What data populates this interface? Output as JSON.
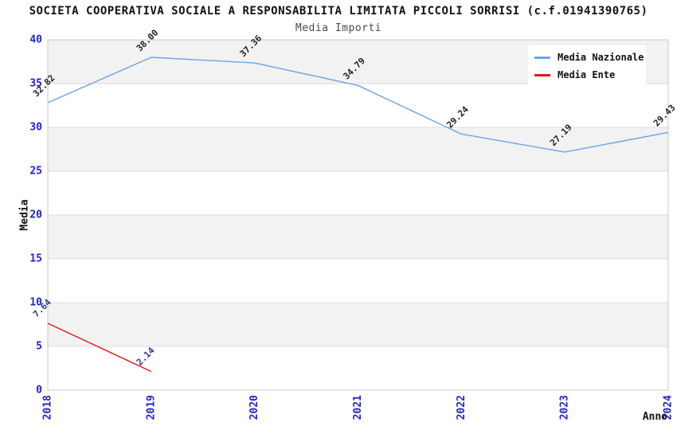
{
  "header": {
    "title": "SOCIETA COOPERATIVA SOCIALE A RESPONSABILITA LIMITATA PICCOLI SORRISI (c.f.01941390765)",
    "subtitle": "Media Importi"
  },
  "chart_data": {
    "type": "line",
    "title": "Media Importi",
    "xlabel": "Anno",
    "ylabel": "Media",
    "x": [
      2018,
      2019,
      2020,
      2021,
      2022,
      2023,
      2024
    ],
    "xtick_labels": [
      "2018",
      "2019",
      "2020",
      "2021",
      "2022",
      "2023",
      "2024"
    ],
    "series": [
      {
        "name": "Media Nazionale",
        "color": "#6BA4E7",
        "label_color": "#222222",
        "values": [
          32.82,
          38.0,
          37.36,
          34.79,
          29.24,
          27.19,
          29.43
        ]
      },
      {
        "name": "Media Ente",
        "color": "#EE1111",
        "label_color": "#333399",
        "values": [
          7.64,
          2.14,
          null,
          null,
          null,
          null,
          null
        ]
      }
    ],
    "ylim": [
      0,
      40
    ],
    "ytick_step": 5,
    "grid": "horizontal-bands",
    "legend_position": "top-right",
    "value_label_decimals": 2
  },
  "colors": {
    "tick_label": "#2222CC",
    "band_fill": "#F2F2F2",
    "band_fill_alt": "#FFFFFF",
    "gridline": "#DCDCDC",
    "plot_border": "#C8C8C8",
    "background": "#FFFFFF"
  }
}
